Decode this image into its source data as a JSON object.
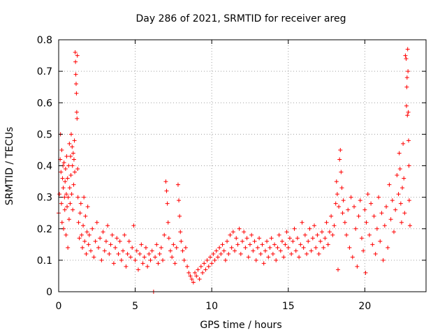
{
  "chart_data": {
    "type": "scatter",
    "title": "Day 286 of 2021, SRMTID for receiver areg",
    "xlabel": "GPS time / hours",
    "ylabel": "SRMTID / TECUs",
    "xlim": [
      0,
      24
    ],
    "ylim": [
      0,
      0.8
    ],
    "x_ticks": [
      0,
      5,
      10,
      15,
      20
    ],
    "x_tick_labels": [
      "0",
      "5",
      "10",
      "15",
      "20"
    ],
    "y_ticks": [
      0,
      0.1,
      0.2,
      0.3,
      0.4,
      0.5,
      0.6,
      0.7,
      0.8
    ],
    "y_tick_labels": [
      "0",
      "0.1",
      "0.2",
      "0.3",
      "0.4",
      "0.5",
      "0.6",
      "0.7",
      "0.8"
    ],
    "grid": true,
    "marker": "+",
    "color": "#ff0000",
    "series": [
      {
        "name": "SRMTID",
        "points": [
          [
            0.0,
            0.25
          ],
          [
            0.05,
            0.31
          ],
          [
            0.1,
            0.42
          ],
          [
            0.12,
            0.5
          ],
          [
            0.15,
            0.38
          ],
          [
            0.18,
            0.28
          ],
          [
            0.2,
            0.45
          ],
          [
            0.22,
            0.22
          ],
          [
            0.25,
            0.36
          ],
          [
            0.28,
            0.4
          ],
          [
            0.3,
            0.33
          ],
          [
            0.32,
            0.2
          ],
          [
            0.35,
            0.41
          ],
          [
            0.38,
            0.3
          ],
          [
            0.4,
            0.26
          ],
          [
            0.42,
            0.35
          ],
          [
            0.45,
            0.39
          ],
          [
            0.48,
            0.18
          ],
          [
            0.5,
            0.31
          ],
          [
            0.52,
            0.43
          ],
          [
            0.55,
            0.27
          ],
          [
            0.58,
            0.36
          ],
          [
            0.6,
            0.14
          ],
          [
            0.62,
            0.3
          ],
          [
            0.65,
            0.4
          ],
          [
            0.68,
            0.23
          ],
          [
            0.7,
            0.47
          ],
          [
            0.72,
            0.33
          ],
          [
            0.75,
            0.28
          ],
          [
            0.78,
            0.43
          ],
          [
            0.8,
            0.37
          ],
          [
            0.82,
            0.5
          ],
          [
            0.85,
            0.31
          ],
          [
            0.88,
            0.46
          ],
          [
            0.9,
            0.4
          ],
          [
            0.92,
            0.26
          ],
          [
            0.95,
            0.44
          ],
          [
            0.98,
            0.34
          ],
          [
            1.0,
            0.42
          ],
          [
            1.03,
            0.48
          ],
          [
            1.05,
            0.38
          ],
          [
            1.08,
            0.76
          ],
          [
            1.1,
            0.73
          ],
          [
            1.12,
            0.69
          ],
          [
            1.14,
            0.66
          ],
          [
            1.16,
            0.63
          ],
          [
            1.18,
            0.57
          ],
          [
            1.2,
            0.55
          ],
          [
            1.22,
            0.75
          ],
          [
            1.24,
            0.39
          ],
          [
            1.26,
            0.3
          ],
          [
            1.3,
            0.22
          ],
          [
            1.35,
            0.17
          ],
          [
            1.4,
            0.25
          ],
          [
            1.45,
            0.28
          ],
          [
            1.5,
            0.18
          ],
          [
            1.55,
            0.14
          ],
          [
            1.6,
            0.21
          ],
          [
            1.65,
            0.3
          ],
          [
            1.7,
            0.16
          ],
          [
            1.75,
            0.24
          ],
          [
            1.8,
            0.12
          ],
          [
            1.85,
            0.19
          ],
          [
            1.9,
            0.27
          ],
          [
            1.95,
            0.15
          ],
          [
            2.0,
            0.18
          ],
          [
            2.1,
            0.13
          ],
          [
            2.2,
            0.2
          ],
          [
            2.3,
            0.11
          ],
          [
            2.4,
            0.16
          ],
          [
            2.5,
            0.22
          ],
          [
            2.6,
            0.14
          ],
          [
            2.7,
            0.17
          ],
          [
            2.8,
            0.1
          ],
          [
            2.9,
            0.19
          ],
          [
            3.0,
            0.13
          ],
          [
            3.1,
            0.16
          ],
          [
            3.2,
            0.21
          ],
          [
            3.3,
            0.12
          ],
          [
            3.4,
            0.15
          ],
          [
            3.5,
            0.18
          ],
          [
            3.6,
            0.09
          ],
          [
            3.7,
            0.14
          ],
          [
            3.8,
            0.17
          ],
          [
            3.9,
            0.12
          ],
          [
            4.0,
            0.16
          ],
          [
            4.1,
            0.1
          ],
          [
            4.2,
            0.13
          ],
          [
            4.3,
            0.18
          ],
          [
            4.4,
            0.08
          ],
          [
            4.5,
            0.12
          ],
          [
            4.6,
            0.16
          ],
          [
            4.7,
            0.11
          ],
          [
            4.8,
            0.14
          ],
          [
            4.9,
            0.21
          ],
          [
            5.0,
            0.1
          ],
          [
            5.1,
            0.13
          ],
          [
            5.2,
            0.07
          ],
          [
            5.3,
            0.12
          ],
          [
            5.4,
            0.15
          ],
          [
            5.5,
            0.09
          ],
          [
            5.6,
            0.11
          ],
          [
            5.7,
            0.14
          ],
          [
            5.8,
            0.08
          ],
          [
            5.9,
            0.12
          ],
          [
            6.0,
            0.1
          ],
          [
            6.1,
            0.13
          ],
          [
            6.2,
            0.0
          ],
          [
            6.3,
            0.11
          ],
          [
            6.4,
            0.15
          ],
          [
            6.5,
            0.09
          ],
          [
            6.6,
            0.12
          ],
          [
            6.7,
            0.14
          ],
          [
            6.8,
            0.1
          ],
          [
            6.9,
            0.18
          ],
          [
            7.0,
            0.35
          ],
          [
            7.05,
            0.32
          ],
          [
            7.1,
            0.28
          ],
          [
            7.15,
            0.22
          ],
          [
            7.2,
            0.17
          ],
          [
            7.3,
            0.13
          ],
          [
            7.4,
            0.11
          ],
          [
            7.5,
            0.15
          ],
          [
            7.6,
            0.09
          ],
          [
            7.7,
            0.14
          ],
          [
            7.8,
            0.34
          ],
          [
            7.85,
            0.29
          ],
          [
            7.9,
            0.24
          ],
          [
            7.95,
            0.19
          ],
          [
            8.0,
            0.16
          ],
          [
            8.1,
            0.13
          ],
          [
            8.2,
            0.1
          ],
          [
            8.3,
            0.14
          ],
          [
            8.4,
            0.08
          ],
          [
            8.5,
            0.06
          ],
          [
            8.6,
            0.05
          ],
          [
            8.7,
            0.04
          ],
          [
            8.8,
            0.03
          ],
          [
            8.9,
            0.06
          ],
          [
            9.0,
            0.05
          ],
          [
            9.1,
            0.07
          ],
          [
            9.2,
            0.04
          ],
          [
            9.3,
            0.08
          ],
          [
            9.4,
            0.06
          ],
          [
            9.5,
            0.09
          ],
          [
            9.6,
            0.07
          ],
          [
            9.7,
            0.1
          ],
          [
            9.8,
            0.08
          ],
          [
            9.9,
            0.11
          ],
          [
            10.0,
            0.09
          ],
          [
            10.1,
            0.12
          ],
          [
            10.2,
            0.1
          ],
          [
            10.3,
            0.13
          ],
          [
            10.4,
            0.11
          ],
          [
            10.5,
            0.14
          ],
          [
            10.6,
            0.12
          ],
          [
            10.7,
            0.15
          ],
          [
            10.8,
            0.13
          ],
          [
            10.9,
            0.1
          ],
          [
            11.0,
            0.16
          ],
          [
            11.1,
            0.12
          ],
          [
            11.2,
            0.18
          ],
          [
            11.3,
            0.14
          ],
          [
            11.4,
            0.19
          ],
          [
            11.5,
            0.13
          ],
          [
            11.6,
            0.17
          ],
          [
            11.7,
            0.15
          ],
          [
            11.8,
            0.2
          ],
          [
            11.9,
            0.12
          ],
          [
            12.0,
            0.16
          ],
          [
            12.1,
            0.19
          ],
          [
            12.2,
            0.14
          ],
          [
            12.3,
            0.17
          ],
          [
            12.4,
            0.11
          ],
          [
            12.5,
            0.15
          ],
          [
            12.6,
            0.18
          ],
          [
            12.7,
            0.13
          ],
          [
            12.8,
            0.16
          ],
          [
            12.9,
            0.1
          ],
          [
            13.0,
            0.14
          ],
          [
            13.1,
            0.17
          ],
          [
            13.2,
            0.12
          ],
          [
            13.3,
            0.15
          ],
          [
            13.4,
            0.09
          ],
          [
            13.5,
            0.13
          ],
          [
            13.6,
            0.16
          ],
          [
            13.7,
            0.11
          ],
          [
            13.8,
            0.14
          ],
          [
            13.9,
            0.17
          ],
          [
            14.0,
            0.12
          ],
          [
            14.1,
            0.15
          ],
          [
            14.2,
            0.1
          ],
          [
            14.3,
            0.14
          ],
          [
            14.4,
            0.18
          ],
          [
            14.5,
            0.13
          ],
          [
            14.6,
            0.16
          ],
          [
            14.7,
            0.11
          ],
          [
            14.8,
            0.15
          ],
          [
            14.9,
            0.19
          ],
          [
            15.0,
            0.14
          ],
          [
            15.1,
            0.17
          ],
          [
            15.2,
            0.12
          ],
          [
            15.3,
            0.16
          ],
          [
            15.4,
            0.2
          ],
          [
            15.5,
            0.13
          ],
          [
            15.6,
            0.17
          ],
          [
            15.7,
            0.11
          ],
          [
            15.8,
            0.15
          ],
          [
            15.9,
            0.22
          ],
          [
            16.0,
            0.14
          ],
          [
            16.1,
            0.18
          ],
          [
            16.2,
            0.12
          ],
          [
            16.3,
            0.16
          ],
          [
            16.4,
            0.2
          ],
          [
            16.5,
            0.13
          ],
          [
            16.6,
            0.17
          ],
          [
            16.7,
            0.21
          ],
          [
            16.8,
            0.14
          ],
          [
            16.9,
            0.18
          ],
          [
            17.0,
            0.12
          ],
          [
            17.1,
            0.16
          ],
          [
            17.2,
            0.19
          ],
          [
            17.3,
            0.14
          ],
          [
            17.4,
            0.17
          ],
          [
            17.5,
            0.22
          ],
          [
            17.6,
            0.15
          ],
          [
            17.7,
            0.19
          ],
          [
            17.8,
            0.24
          ],
          [
            17.9,
            0.18
          ],
          [
            18.0,
            0.21
          ],
          [
            18.1,
            0.28
          ],
          [
            18.15,
            0.35
          ],
          [
            18.2,
            0.31
          ],
          [
            18.25,
            0.07
          ],
          [
            18.3,
            0.27
          ],
          [
            18.35,
            0.42
          ],
          [
            18.4,
            0.45
          ],
          [
            18.45,
            0.38
          ],
          [
            18.5,
            0.33
          ],
          [
            18.55,
            0.25
          ],
          [
            18.6,
            0.29
          ],
          [
            18.7,
            0.22
          ],
          [
            18.8,
            0.18
          ],
          [
            18.9,
            0.26
          ],
          [
            19.0,
            0.14
          ],
          [
            19.1,
            0.3
          ],
          [
            19.2,
            0.11
          ],
          [
            19.3,
            0.27
          ],
          [
            19.4,
            0.2
          ],
          [
            19.5,
            0.08
          ],
          [
            19.6,
            0.24
          ],
          [
            19.7,
            0.29
          ],
          [
            19.8,
            0.17
          ],
          [
            19.9,
            0.13
          ],
          [
            20.0,
            0.26
          ],
          [
            20.05,
            0.06
          ],
          [
            20.1,
            0.22
          ],
          [
            20.2,
            0.31
          ],
          [
            20.3,
            0.18
          ],
          [
            20.4,
            0.28
          ],
          [
            20.5,
            0.15
          ],
          [
            20.6,
            0.24
          ],
          [
            20.7,
            0.12
          ],
          [
            20.8,
            0.2
          ],
          [
            20.9,
            0.3
          ],
          [
            21.0,
            0.16
          ],
          [
            21.1,
            0.25
          ],
          [
            21.2,
            0.1
          ],
          [
            21.3,
            0.21
          ],
          [
            21.4,
            0.27
          ],
          [
            21.5,
            0.14
          ],
          [
            21.6,
            0.34
          ],
          [
            21.7,
            0.23
          ],
          [
            21.8,
            0.29
          ],
          [
            21.9,
            0.19
          ],
          [
            22.0,
            0.26
          ],
          [
            22.1,
            0.37
          ],
          [
            22.2,
            0.31
          ],
          [
            22.25,
            0.44
          ],
          [
            22.3,
            0.39
          ],
          [
            22.35,
            0.28
          ],
          [
            22.4,
            0.22
          ],
          [
            22.45,
            0.33
          ],
          [
            22.5,
            0.47
          ],
          [
            22.55,
            0.36
          ],
          [
            22.6,
            0.25
          ],
          [
            22.65,
            0.75
          ],
          [
            22.7,
            0.74
          ],
          [
            22.72,
            0.59
          ],
          [
            22.74,
            0.65
          ],
          [
            22.76,
            0.68
          ],
          [
            22.78,
            0.56
          ],
          [
            22.8,
            0.77
          ],
          [
            22.82,
            0.7
          ],
          [
            22.84,
            0.57
          ],
          [
            22.86,
            0.48
          ],
          [
            22.88,
            0.4
          ],
          [
            22.9,
            0.29
          ],
          [
            22.95,
            0.21
          ]
        ]
      }
    ]
  }
}
